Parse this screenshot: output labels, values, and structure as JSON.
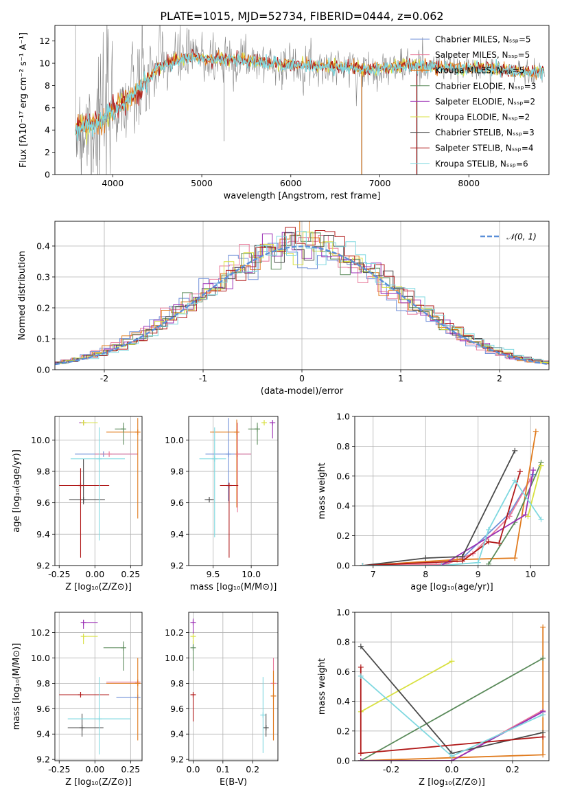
{
  "title": "PLATE=1015, MJD=52734, FIBERID=0444, z=0.062",
  "colors": {
    "chabrier_miles": "#6f8fd8",
    "salpeter_miles": "#e87a9a",
    "kroupa_miles": "#e07b1e",
    "chabrier_elodie": "#5a8a5a",
    "salpeter_elodie": "#9b2fb5",
    "kroupa_elodie": "#d8e040",
    "chabrier_stelib": "#4a4a4a",
    "salpeter_stelib": "#b01818",
    "kroupa_stelib": "#7fd8e0",
    "normal_curve": "#5a8fd8",
    "data_spectrum": "#808080",
    "grid": "#b0b0b0"
  },
  "chart_data": [
    {
      "type": "line",
      "id": "spectrum",
      "xlabel": "wavelength [Angstrom, rest frame]",
      "ylabel": "Flux [fλ10⁻¹⁷ erg cm⁻² s⁻¹ A⁻¹]",
      "xlim": [
        3350,
        8900
      ],
      "ylim": [
        0,
        13.4
      ],
      "xticks": [
        4000,
        5000,
        6000,
        7000,
        8000
      ],
      "yticks": [
        0,
        2,
        4,
        6,
        8,
        10,
        12
      ],
      "legend_position": "top-right",
      "series": [
        {
          "name": "Chabrier MILES, Nₛₛₚ=5",
          "color_key": "chabrier_miles"
        },
        {
          "name": "Salpeter MILES, Nₛₛₚ=5",
          "color_key": "salpeter_miles"
        },
        {
          "name": "Kroupa MILES, Nₛₛₚ=5",
          "color_key": "kroupa_miles"
        },
        {
          "name": "Chabrier ELODIE, Nₛₛₚ=3",
          "color_key": "chabrier_elodie"
        },
        {
          "name": "Salpeter ELODIE, Nₛₛₚ=2",
          "color_key": "salpeter_elodie"
        },
        {
          "name": "Kroupa ELODIE, Nₛₛₚ=2",
          "color_key": "kroupa_elodie"
        },
        {
          "name": "Chabrier STELIB, Nₛₛₚ=3",
          "color_key": "chabrier_stelib"
        },
        {
          "name": "Salpeter STELIB, Nₛₛₚ=4",
          "color_key": "salpeter_stelib"
        },
        {
          "name": "Kroupa STELIB, Nₛₛₚ=6",
          "color_key": "kroupa_stelib"
        }
      ],
      "continuum": {
        "x": [
          3580,
          3700,
          3850,
          4000,
          4150,
          4300,
          4500,
          4700,
          4900,
          5100,
          5300,
          5500,
          5700,
          5900,
          6100,
          6300,
          6500,
          6700,
          6900,
          7100,
          7300,
          7500,
          7700,
          7900,
          8100,
          8300,
          8500,
          8700,
          8900
        ],
        "y": [
          4.2,
          4.4,
          4.8,
          5.8,
          6.6,
          7.6,
          9.6,
          10.3,
          10.6,
          10.4,
          10.4,
          10.3,
          10.1,
          9.9,
          9.9,
          9.8,
          9.7,
          9.6,
          9.5,
          9.6,
          9.8,
          9.8,
          9.6,
          9.5,
          9.6,
          9.5,
          9.3,
          9.2,
          9.2
        ]
      }
    },
    {
      "type": "line",
      "id": "residuals",
      "xlabel": "(data-model)/error",
      "ylabel": "Normed distribution",
      "xlim": [
        -2.5,
        2.5
      ],
      "ylim": [
        0,
        0.48
      ],
      "xticks": [
        -2,
        -1,
        0,
        1,
        2
      ],
      "yticks": [
        0.0,
        0.1,
        0.2,
        0.3,
        0.4
      ],
      "legend": "𝒩(0, 1)",
      "legend_position": "top-right"
    },
    {
      "type": "scatter",
      "id": "age_vs_Z",
      "xlabel": "Z [log₁₀(Z/Z⊙)]",
      "ylabel": "age  [log₁₀(age/yr)]",
      "xlim": [
        -0.28,
        0.33
      ],
      "ylim": [
        9.2,
        10.15
      ],
      "xticks": [
        -0.25,
        0.0,
        0.25
      ],
      "yticks": [
        9.2,
        9.4,
        9.6,
        9.8,
        10.0
      ],
      "points": [
        {
          "color_key": "chabrier_miles",
          "x": 0.06,
          "y": 9.91,
          "xerr": [
            0.2,
            0.24
          ],
          "yerr": [
            0.0,
            0.0
          ]
        },
        {
          "color_key": "salpeter_miles",
          "x": 0.1,
          "y": 9.91,
          "xerr": [
            0.1,
            0.2
          ],
          "yerr": [
            0.0,
            0.0
          ]
        },
        {
          "color_key": "kroupa_miles",
          "x": 0.3,
          "y": 10.05,
          "xerr": [
            0.22,
            0.0
          ],
          "yerr": [
            0.55,
            0.09
          ]
        },
        {
          "color_key": "chabrier_elodie",
          "x": 0.2,
          "y": 10.07,
          "xerr": [
            0.06,
            0.0
          ],
          "yerr": [
            0.1,
            0.04
          ]
        },
        {
          "color_key": "salpeter_elodie",
          "x": -0.08,
          "y": 10.11,
          "xerr": [
            0.03,
            0.0
          ],
          "yerr": [
            0.0,
            0.0
          ]
        },
        {
          "color_key": "kroupa_elodie",
          "x": -0.08,
          "y": 10.11,
          "xerr": [
            0.0,
            0.1
          ],
          "yerr": [
            0.0,
            0.0
          ]
        },
        {
          "color_key": "chabrier_stelib",
          "x": -0.08,
          "y": 9.62,
          "xerr": [
            0.1,
            0.15
          ],
          "yerr": [
            0.03,
            0.26
          ]
        },
        {
          "color_key": "salpeter_stelib",
          "x": -0.1,
          "y": 9.71,
          "xerr": [
            0.15,
            0.2
          ],
          "yerr": [
            0.46,
            0.11
          ]
        },
        {
          "color_key": "kroupa_stelib",
          "x": 0.03,
          "y": 9.88,
          "xerr": [
            0.2,
            0.18
          ],
          "yerr": [
            0.52,
            0.2
          ]
        }
      ]
    },
    {
      "type": "scatter",
      "id": "age_vs_mass",
      "xlabel": "mass [log₁₀(M/M⊙)]",
      "xlim": [
        9.18,
        10.35
      ],
      "ylim": [
        9.2,
        10.15
      ],
      "xticks": [
        9.5,
        10.0
      ],
      "yticks": [
        9.2,
        9.4,
        9.6,
        9.8,
        10.0
      ],
      "points": [
        {
          "color_key": "chabrier_miles",
          "x": 9.7,
          "y": 9.91,
          "xerr": [
            0.3,
            0.3
          ],
          "yerr": [
            0.3,
            0.23
          ]
        },
        {
          "color_key": "salpeter_miles",
          "x": 9.82,
          "y": 9.91,
          "xerr": [
            0.0,
            0.18
          ],
          "yerr": [
            0.37,
            0.2
          ]
        },
        {
          "color_key": "kroupa_miles",
          "x": 9.81,
          "y": 10.05,
          "xerr": [
            0.35,
            0.0
          ],
          "yerr": [
            0.48,
            0.08
          ]
        },
        {
          "color_key": "chabrier_elodie",
          "x": 10.08,
          "y": 10.07,
          "xerr": [
            0.12,
            0.0
          ],
          "yerr": [
            0.1,
            0.04
          ]
        },
        {
          "color_key": "salpeter_elodie",
          "x": 10.28,
          "y": 10.11,
          "xerr": [
            0.04,
            0.0
          ],
          "yerr": [
            0.1,
            0.0
          ]
        },
        {
          "color_key": "kroupa_elodie",
          "x": 10.17,
          "y": 10.11,
          "xerr": [
            0.02,
            0.0
          ],
          "yerr": [
            0.0,
            0.0
          ]
        },
        {
          "color_key": "chabrier_stelib",
          "x": 9.45,
          "y": 9.62,
          "xerr": [
            0.06,
            0.06
          ],
          "yerr": [
            0.0,
            0.0
          ]
        },
        {
          "color_key": "salpeter_stelib",
          "x": 9.71,
          "y": 9.71,
          "xerr": [
            0.12,
            0.12
          ],
          "yerr": [
            0.46,
            0.0
          ]
        },
        {
          "color_key": "kroupa_stelib",
          "x": 9.52,
          "y": 9.88,
          "xerr": [
            0.2,
            0.15
          ],
          "yerr": [
            0.5,
            0.2
          ]
        }
      ]
    },
    {
      "type": "line",
      "id": "massweight_vs_age",
      "xlabel": "age  [log₁₀(age/yr)]",
      "ylabel": "mass weight",
      "xlim": [
        6.65,
        10.35
      ],
      "ylim": [
        0,
        1.0
      ],
      "xticks": [
        7,
        8,
        9,
        10
      ],
      "yticks": [
        0.0,
        0.2,
        0.4,
        0.6,
        0.8,
        1.0
      ],
      "series": [
        {
          "color_key": "chabrier_miles",
          "x": [
            6.8,
            8.2,
            8.7,
            9.6,
            10.05
          ],
          "y": [
            0.0,
            0.0,
            0.05,
            0.35,
            0.61
          ]
        },
        {
          "color_key": "salpeter_miles",
          "x": [
            6.8,
            8.4,
            8.9,
            9.6,
            10.0
          ],
          "y": [
            0.0,
            0.01,
            0.08,
            0.33,
            0.58
          ]
        },
        {
          "color_key": "kroupa_miles",
          "x": [
            6.8,
            8.6,
            9.7,
            10.1
          ],
          "y": [
            0.0,
            0.04,
            0.05,
            0.9
          ]
        },
        {
          "color_key": "chabrier_elodie",
          "x": [
            9.2,
            9.7,
            10.2
          ],
          "y": [
            0.01,
            0.29,
            0.69
          ]
        },
        {
          "color_key": "salpeter_elodie",
          "x": [
            8.3,
            9.9,
            10.05
          ],
          "y": [
            0.0,
            0.34,
            0.64
          ]
        },
        {
          "color_key": "kroupa_elodie",
          "x": [
            9.95,
            10.2
          ],
          "y": [
            0.33,
            0.67
          ]
        },
        {
          "color_key": "chabrier_stelib",
          "x": [
            6.8,
            8.0,
            8.7,
            9.7
          ],
          "y": [
            0.0,
            0.05,
            0.06,
            0.77
          ]
        },
        {
          "color_key": "salpeter_stelib",
          "x": [
            6.8,
            8.7,
            9.2,
            9.4,
            9.8
          ],
          "y": [
            0.0,
            0.03,
            0.16,
            0.15,
            0.63
          ]
        },
        {
          "color_key": "kroupa_stelib",
          "x": [
            6.8,
            8.3,
            9.0,
            9.2,
            9.7,
            10.2
          ],
          "y": [
            0.0,
            0.0,
            0.02,
            0.24,
            0.57,
            0.31
          ]
        }
      ]
    },
    {
      "type": "scatter",
      "id": "mass_vs_Z",
      "xlabel": "Z [log₁₀(Z/Z⊙)]",
      "ylabel": "mass [log₁₀(M/M⊙)]",
      "xlim": [
        -0.28,
        0.33
      ],
      "ylim": [
        9.19,
        10.36
      ],
      "xticks": [
        -0.25,
        0.0,
        0.25
      ],
      "yticks": [
        9.2,
        9.4,
        9.6,
        9.8,
        10.0,
        10.2
      ],
      "points": [
        {
          "color_key": "chabrier_miles",
          "x": 0.3,
          "y": 9.69,
          "xerr": [
            0.15,
            0.0
          ],
          "yerr": [
            0.0,
            0.0
          ]
        },
        {
          "color_key": "salpeter_miles",
          "x": 0.3,
          "y": 9.81,
          "xerr": [
            0.22,
            0.0
          ],
          "yerr": [
            0.0,
            0.0
          ]
        },
        {
          "color_key": "kroupa_miles",
          "x": 0.3,
          "y": 9.8,
          "xerr": [
            0.22,
            0.0
          ],
          "yerr": [
            0.45,
            0.2
          ]
        },
        {
          "color_key": "chabrier_elodie",
          "x": 0.2,
          "y": 10.08,
          "xerr": [
            0.14,
            0.0
          ],
          "yerr": [
            0.18,
            0.05
          ]
        },
        {
          "color_key": "salpeter_elodie",
          "x": -0.08,
          "y": 10.28,
          "xerr": [
            0.0,
            0.1
          ],
          "yerr": [
            0.05,
            0.0
          ]
        },
        {
          "color_key": "kroupa_elodie",
          "x": -0.08,
          "y": 10.17,
          "xerr": [
            0.0,
            0.1
          ],
          "yerr": [
            0.06,
            0.0
          ]
        },
        {
          "color_key": "chabrier_stelib",
          "x": -0.09,
          "y": 9.45,
          "xerr": [
            0.1,
            0.15
          ],
          "yerr": [
            0.07,
            0.11
          ]
        },
        {
          "color_key": "salpeter_stelib",
          "x": -0.1,
          "y": 9.71,
          "xerr": [
            0.15,
            0.2
          ],
          "yerr": [
            0.0,
            0.0
          ]
        },
        {
          "color_key": "kroupa_stelib",
          "x": 0.03,
          "y": 9.52,
          "xerr": [
            0.22,
            0.22
          ],
          "yerr": [
            0.28,
            0.33
          ]
        }
      ]
    },
    {
      "type": "scatter",
      "id": "mass_vs_EBV",
      "xlabel": "E(B-V)",
      "xlim": [
        -0.015,
        0.285
      ],
      "ylim": [
        9.19,
        10.36
      ],
      "xticks": [
        0.0,
        0.1,
        0.2
      ],
      "yticks": [
        9.2,
        9.4,
        9.6,
        9.8,
        10.0,
        10.2
      ],
      "points": [
        {
          "color_key": "chabrier_elodie",
          "x": 0.0,
          "y": 10.08,
          "xerr": [
            0.0,
            0.0
          ],
          "yerr": [
            0.18,
            0.06
          ]
        },
        {
          "color_key": "salpeter_elodie",
          "x": 0.0,
          "y": 10.28,
          "xerr": [
            0.0,
            0.0
          ],
          "yerr": [
            0.1,
            0.03
          ]
        },
        {
          "color_key": "kroupa_elodie",
          "x": 0.0,
          "y": 10.17,
          "xerr": [
            0.0,
            0.0
          ],
          "yerr": [
            0.06,
            0.0
          ]
        },
        {
          "color_key": "salpeter_stelib",
          "x": 0.0,
          "y": 9.71,
          "xerr": [
            0.0,
            0.0
          ],
          "yerr": [
            0.21,
            0.0
          ]
        },
        {
          "color_key": "chabrier_stelib",
          "x": 0.245,
          "y": 9.45,
          "xerr": [
            0.0,
            0.0
          ],
          "yerr": [
            0.07,
            0.11
          ]
        },
        {
          "color_key": "kroupa_stelib",
          "x": 0.235,
          "y": 9.55,
          "xerr": [
            0.0,
            0.0
          ],
          "yerr": [
            0.3,
            0.3
          ]
        },
        {
          "color_key": "salpeter_miles",
          "x": 0.27,
          "y": 9.8,
          "xerr": [
            0.0,
            0.0
          ],
          "yerr": [
            0.45,
            0.2
          ]
        },
        {
          "color_key": "kroupa_miles",
          "x": 0.27,
          "y": 9.7,
          "xerr": [
            0.0,
            0.0
          ],
          "yerr": [
            0.35,
            0.2
          ]
        }
      ]
    },
    {
      "type": "line",
      "id": "massweight_vs_Z",
      "xlabel": "Z [log₁₀(Z/Z⊙)]",
      "ylabel": "mass weight",
      "xlim": [
        -0.32,
        0.32
      ],
      "ylim": [
        0,
        1.0
      ],
      "xticks": [
        -0.2,
        0.0,
        0.2
      ],
      "yticks": [
        0.0,
        0.2,
        0.4,
        0.6,
        0.8,
        1.0
      ],
      "series": [
        {
          "color_key": "chabrier_miles",
          "x": [
            -0.3,
            0.0,
            0.3
          ],
          "y": [
            0.0,
            0.0,
            0.33
          ]
        },
        {
          "color_key": "salpeter_miles",
          "x": [
            -0.3,
            0.0,
            0.3
          ],
          "y": [
            0.0,
            0.0,
            0.34
          ]
        },
        {
          "color_key": "kroupa_miles",
          "x": [
            -0.3,
            0.3,
            0.3
          ],
          "y": [
            0.0,
            0.04,
            0.9
          ]
        },
        {
          "color_key": "chabrier_elodie",
          "x": [
            -0.3,
            0.3
          ],
          "y": [
            0.0,
            0.69
          ]
        },
        {
          "color_key": "salpeter_elodie",
          "x": [
            -0.3,
            0.0,
            0.3
          ],
          "y": [
            0.0,
            0.0,
            0.33
          ]
        },
        {
          "color_key": "kroupa_elodie",
          "x": [
            -0.3,
            0.0
          ],
          "y": [
            0.33,
            0.67
          ]
        },
        {
          "color_key": "chabrier_stelib",
          "x": [
            -0.3,
            0.0,
            0.3
          ],
          "y": [
            0.77,
            0.05,
            0.19
          ]
        },
        {
          "color_key": "salpeter_stelib",
          "x": [
            -0.3,
            -0.3,
            0.3
          ],
          "y": [
            0.63,
            0.05,
            0.16
          ]
        },
        {
          "color_key": "kroupa_stelib",
          "x": [
            -0.3,
            0.0,
            0.3
          ],
          "y": [
            0.57,
            0.03,
            0.31
          ]
        }
      ]
    }
  ]
}
